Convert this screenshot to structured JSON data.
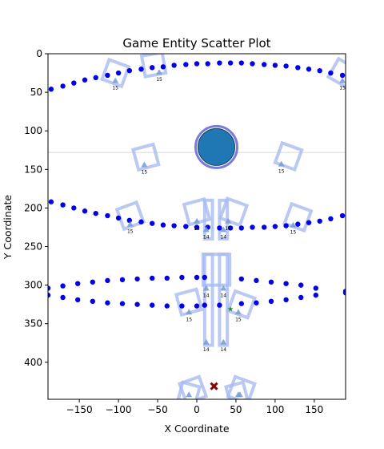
{
  "chart_data": {
    "type": "scatter",
    "title": "Game Entity Scatter Plot",
    "xlabel": "X Coordinate",
    "ylabel": "Y Coordinate",
    "xlim": [
      -190,
      190
    ],
    "ylim": [
      448,
      0
    ],
    "y_inverted": true,
    "x_ticks": [
      -150,
      -100,
      -50,
      0,
      50,
      100,
      150
    ],
    "y_ticks": [
      0,
      50,
      100,
      150,
      200,
      250,
      300,
      350,
      400
    ],
    "x_tick_labels": [
      "−150",
      "−100",
      "−50",
      "0",
      "50",
      "100",
      "150"
    ],
    "y_tick_labels": [
      "0",
      "50",
      "100",
      "150",
      "200",
      "250",
      "300",
      "350",
      "400"
    ],
    "grid": false,
    "colors": {
      "dots": "#0000ee",
      "player": "#1f77b4",
      "player_ring": "#7b7bdc",
      "outline": "#a8bcf0",
      "marker": "#7aa0d4",
      "enemy": "#8b0000",
      "pickup": "#2a8a2a",
      "hline": "#d8d8d8"
    },
    "horizontal_line": 128,
    "player": {
      "x": 25,
      "y": 121
    },
    "enemy_x": {
      "x": 22,
      "y": 431
    },
    "pickup_star": {
      "x": 43,
      "y": 331
    },
    "series": [
      {
        "values": [
          [
            -186,
            46
          ],
          [
            -171,
            42
          ],
          [
            -157,
            38
          ],
          [
            -143,
            34
          ],
          [
            -129,
            31
          ],
          [
            -114,
            28
          ],
          [
            -100,
            25
          ],
          [
            -86,
            22
          ],
          [
            -71,
            20
          ],
          [
            -57,
            18
          ],
          [
            -43,
            17
          ],
          [
            -29,
            15
          ],
          [
            -14,
            14
          ],
          [
            0,
            13
          ],
          [
            14,
            13
          ],
          [
            29,
            12
          ],
          [
            43,
            12
          ],
          [
            57,
            12
          ],
          [
            71,
            13
          ],
          [
            86,
            14
          ],
          [
            100,
            15
          ],
          [
            114,
            16
          ],
          [
            129,
            18
          ],
          [
            143,
            20
          ],
          [
            157,
            22
          ],
          [
            171,
            25
          ],
          [
            186,
            28
          ]
        ]
      },
      {
        "values": [
          [
            -186,
            192
          ],
          [
            -171,
            196
          ],
          [
            -157,
            200
          ],
          [
            -143,
            204
          ],
          [
            -129,
            207
          ],
          [
            -114,
            210
          ],
          [
            -100,
            213
          ],
          [
            -86,
            216
          ],
          [
            -71,
            218
          ],
          [
            -57,
            220
          ],
          [
            -43,
            222
          ],
          [
            -29,
            223
          ],
          [
            -14,
            224
          ],
          [
            0,
            225
          ],
          [
            14,
            225
          ],
          [
            29,
            226
          ],
          [
            43,
            226
          ],
          [
            57,
            226
          ],
          [
            71,
            225
          ],
          [
            86,
            225
          ],
          [
            100,
            224
          ],
          [
            114,
            223
          ],
          [
            129,
            221
          ],
          [
            143,
            219
          ],
          [
            157,
            217
          ],
          [
            171,
            214
          ],
          [
            186,
            210
          ]
        ]
      },
      {
        "values": [
          [
            -190,
            304
          ],
          [
            -171,
            301
          ],
          [
            -152,
            298
          ],
          [
            -133,
            296
          ],
          [
            -114,
            294
          ],
          [
            -95,
            293
          ],
          [
            -76,
            292
          ],
          [
            -57,
            291
          ],
          [
            -38,
            291
          ],
          [
            -19,
            290
          ],
          [
            0,
            290
          ],
          [
            10,
            290
          ],
          [
            57,
            292
          ],
          [
            76,
            294
          ],
          [
            95,
            296
          ],
          [
            114,
            298
          ],
          [
            133,
            300
          ],
          [
            152,
            304
          ],
          [
            190,
            308
          ]
        ]
      },
      {
        "values": [
          [
            -190,
            313
          ],
          [
            -171,
            316
          ],
          [
            -152,
            319
          ],
          [
            -133,
            321
          ],
          [
            -114,
            323
          ],
          [
            -95,
            324
          ],
          [
            -76,
            325
          ],
          [
            -57,
            326
          ],
          [
            -38,
            327
          ],
          [
            -19,
            327
          ],
          [
            0,
            327
          ],
          [
            10,
            326
          ],
          [
            29,
            326
          ],
          [
            57,
            324
          ],
          [
            76,
            323
          ],
          [
            95,
            321
          ],
          [
            114,
            319
          ],
          [
            133,
            316
          ],
          [
            152,
            313
          ],
          [
            190,
            310
          ]
        ]
      }
    ],
    "outline_squares": [
      {
        "x": -104,
        "y": 25,
        "angle": 20,
        "size": 26
      },
      {
        "x": -55,
        "y": 14,
        "angle": -10,
        "size": 26
      },
      {
        "x": 186,
        "y": 25,
        "angle": 30,
        "size": 26
      },
      {
        "x": -65,
        "y": 134,
        "angle": -15,
        "size": 26
      },
      {
        "x": 117,
        "y": 133,
        "angle": 20,
        "size": 26
      },
      {
        "x": -85,
        "y": 210,
        "angle": -20,
        "size": 26
      },
      {
        "x": 0,
        "y": 205,
        "angle": -15,
        "size": 26
      },
      {
        "x": 47,
        "y": 205,
        "angle": 20,
        "size": 26
      },
      {
        "x": 129,
        "y": 212,
        "angle": 20,
        "size": 26
      },
      {
        "x": -10,
        "y": 322,
        "angle": -15,
        "size": 26
      },
      {
        "x": 57,
        "y": 325,
        "angle": 20,
        "size": 26
      },
      {
        "x": -5,
        "y": 436,
        "angle": -20,
        "size": 26
      },
      {
        "x": 57,
        "y": 436,
        "angle": 20,
        "size": 26
      },
      {
        "x": -10,
        "y": 440,
        "angle": 15,
        "size": 22
      },
      {
        "x": 51,
        "y": 440,
        "angle": -15,
        "size": 22
      }
    ],
    "outline_rects": [
      {
        "x0": 10,
        "x1": 20,
        "y0": 190,
        "y1": 240
      },
      {
        "x0": 29,
        "x1": 39,
        "y0": 190,
        "y1": 240
      },
      {
        "x0": 10,
        "x1": 20,
        "y0": 260,
        "y1": 378
      },
      {
        "x0": 29,
        "x1": 39,
        "y0": 260,
        "y1": 378
      },
      {
        "x0": 8,
        "x1": 42,
        "y0": 260,
        "y1": 300
      }
    ],
    "markers": [
      {
        "x": -48,
        "y": 24,
        "label": "15"
      },
      {
        "x": -104,
        "y": 35,
        "label": "15"
      },
      {
        "x": 186,
        "y": 35,
        "label": "15"
      },
      {
        "x": -67,
        "y": 144,
        "label": "15"
      },
      {
        "x": 108,
        "y": 143,
        "label": "15"
      },
      {
        "x": -85,
        "y": 221,
        "label": "15"
      },
      {
        "x": 0,
        "y": 217,
        "label": "15"
      },
      {
        "x": 40,
        "y": 217,
        "label": "15"
      },
      {
        "x": 123,
        "y": 222,
        "label": "15"
      },
      {
        "x": 12,
        "y": 228,
        "label": "14"
      },
      {
        "x": 34,
        "y": 228,
        "label": "14"
      },
      {
        "x": 12,
        "y": 304,
        "label": "14"
      },
      {
        "x": 34,
        "y": 304,
        "label": "14"
      },
      {
        "x": -10,
        "y": 335,
        "label": "15"
      },
      {
        "x": 53,
        "y": 335,
        "label": "15"
      },
      {
        "x": 12,
        "y": 374,
        "label": "14"
      },
      {
        "x": 34,
        "y": 374,
        "label": "14"
      },
      {
        "x": -10,
        "y": 442,
        "label": "15"
      },
      {
        "x": 53,
        "y": 442,
        "label": "15"
      },
      {
        "x": 55,
        "y": 442,
        "label": "15"
      }
    ]
  }
}
